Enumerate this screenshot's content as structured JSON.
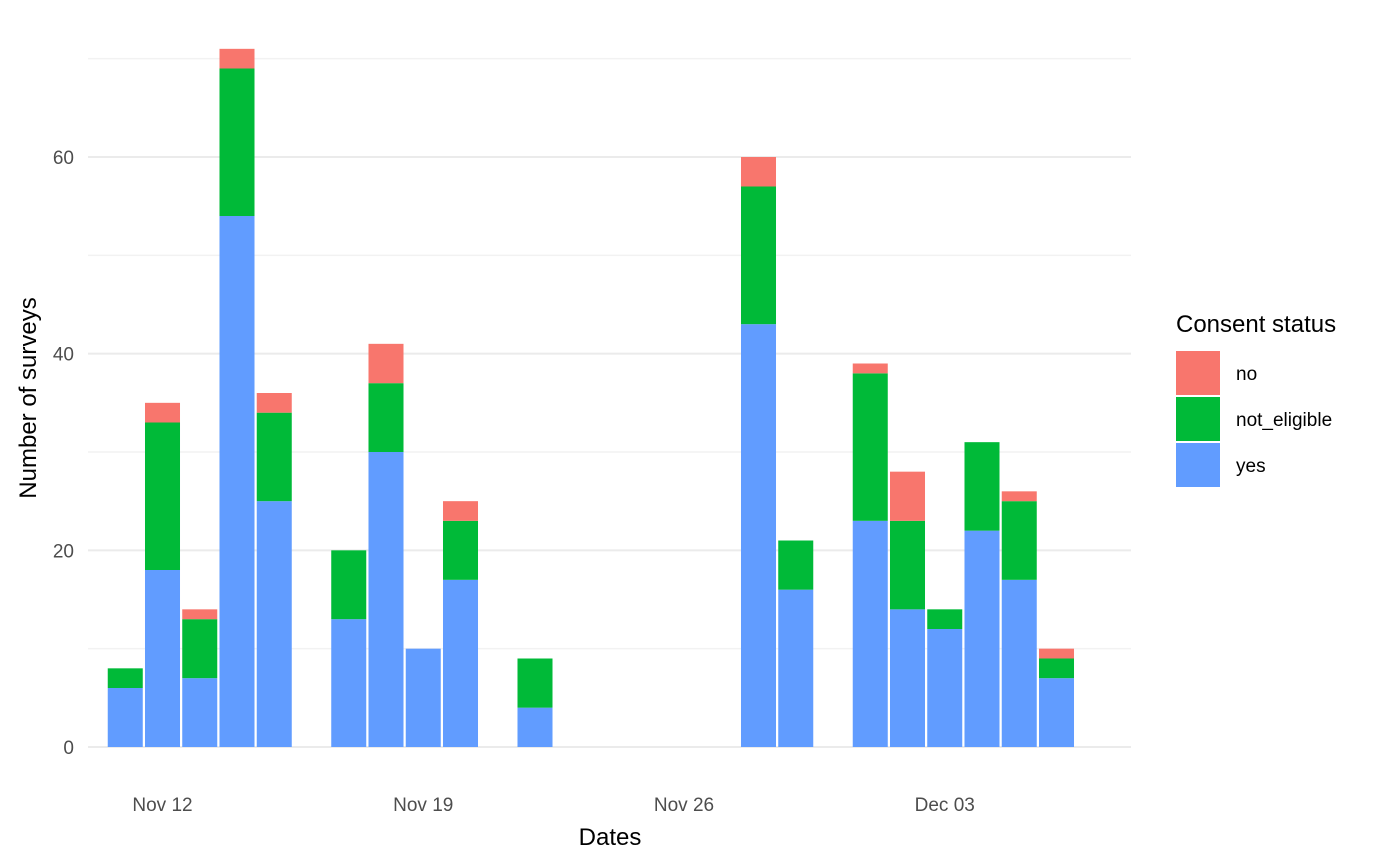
{
  "chart_data": {
    "type": "bar",
    "stacked": true,
    "xlabel": "Dates",
    "ylabel": "Number of surveys",
    "ylim": [
      0,
      71
    ],
    "yticks": [
      0,
      20,
      40,
      60
    ],
    "x_tick_labels": [
      {
        "date": "2023-11-12",
        "label": "Nov 12"
      },
      {
        "date": "2023-11-19",
        "label": "Nov 19"
      },
      {
        "date": "2023-11-26",
        "label": "Nov 26"
      },
      {
        "date": "2023-12-03",
        "label": "Dec 03"
      }
    ],
    "x_range": [
      "2023-11-10",
      "2023-12-08"
    ],
    "grid": true,
    "legend": {
      "title": "Consent status",
      "placement": "right",
      "entries": [
        "no",
        "not_eligible",
        "yes"
      ]
    },
    "colors": {
      "no": "#F8766D",
      "not_eligible": "#00BA38",
      "yes": "#619CFF"
    },
    "dates": [
      "2023-11-11",
      "2023-11-12",
      "2023-11-13",
      "2023-11-14",
      "2023-11-15",
      "2023-11-17",
      "2023-11-18",
      "2023-11-19",
      "2023-11-20",
      "2023-11-22",
      "2023-11-28",
      "2023-11-29",
      "2023-12-01",
      "2023-12-02",
      "2023-12-03",
      "2023-12-04",
      "2023-12-05",
      "2023-12-06"
    ],
    "series": [
      {
        "name": "yes",
        "values": [
          6,
          18,
          7,
          54,
          25,
          13,
          30,
          10,
          17,
          4,
          43,
          16,
          23,
          14,
          12,
          22,
          17,
          7
        ]
      },
      {
        "name": "not_eligible",
        "values": [
          2,
          15,
          6,
          15,
          9,
          7,
          7,
          0,
          6,
          5,
          14,
          5,
          15,
          9,
          2,
          9,
          8,
          2
        ]
      },
      {
        "name": "no",
        "values": [
          0,
          2,
          1,
          2,
          2,
          0,
          4,
          0,
          2,
          0,
          3,
          0,
          1,
          5,
          0,
          0,
          1,
          1
        ]
      }
    ]
  }
}
